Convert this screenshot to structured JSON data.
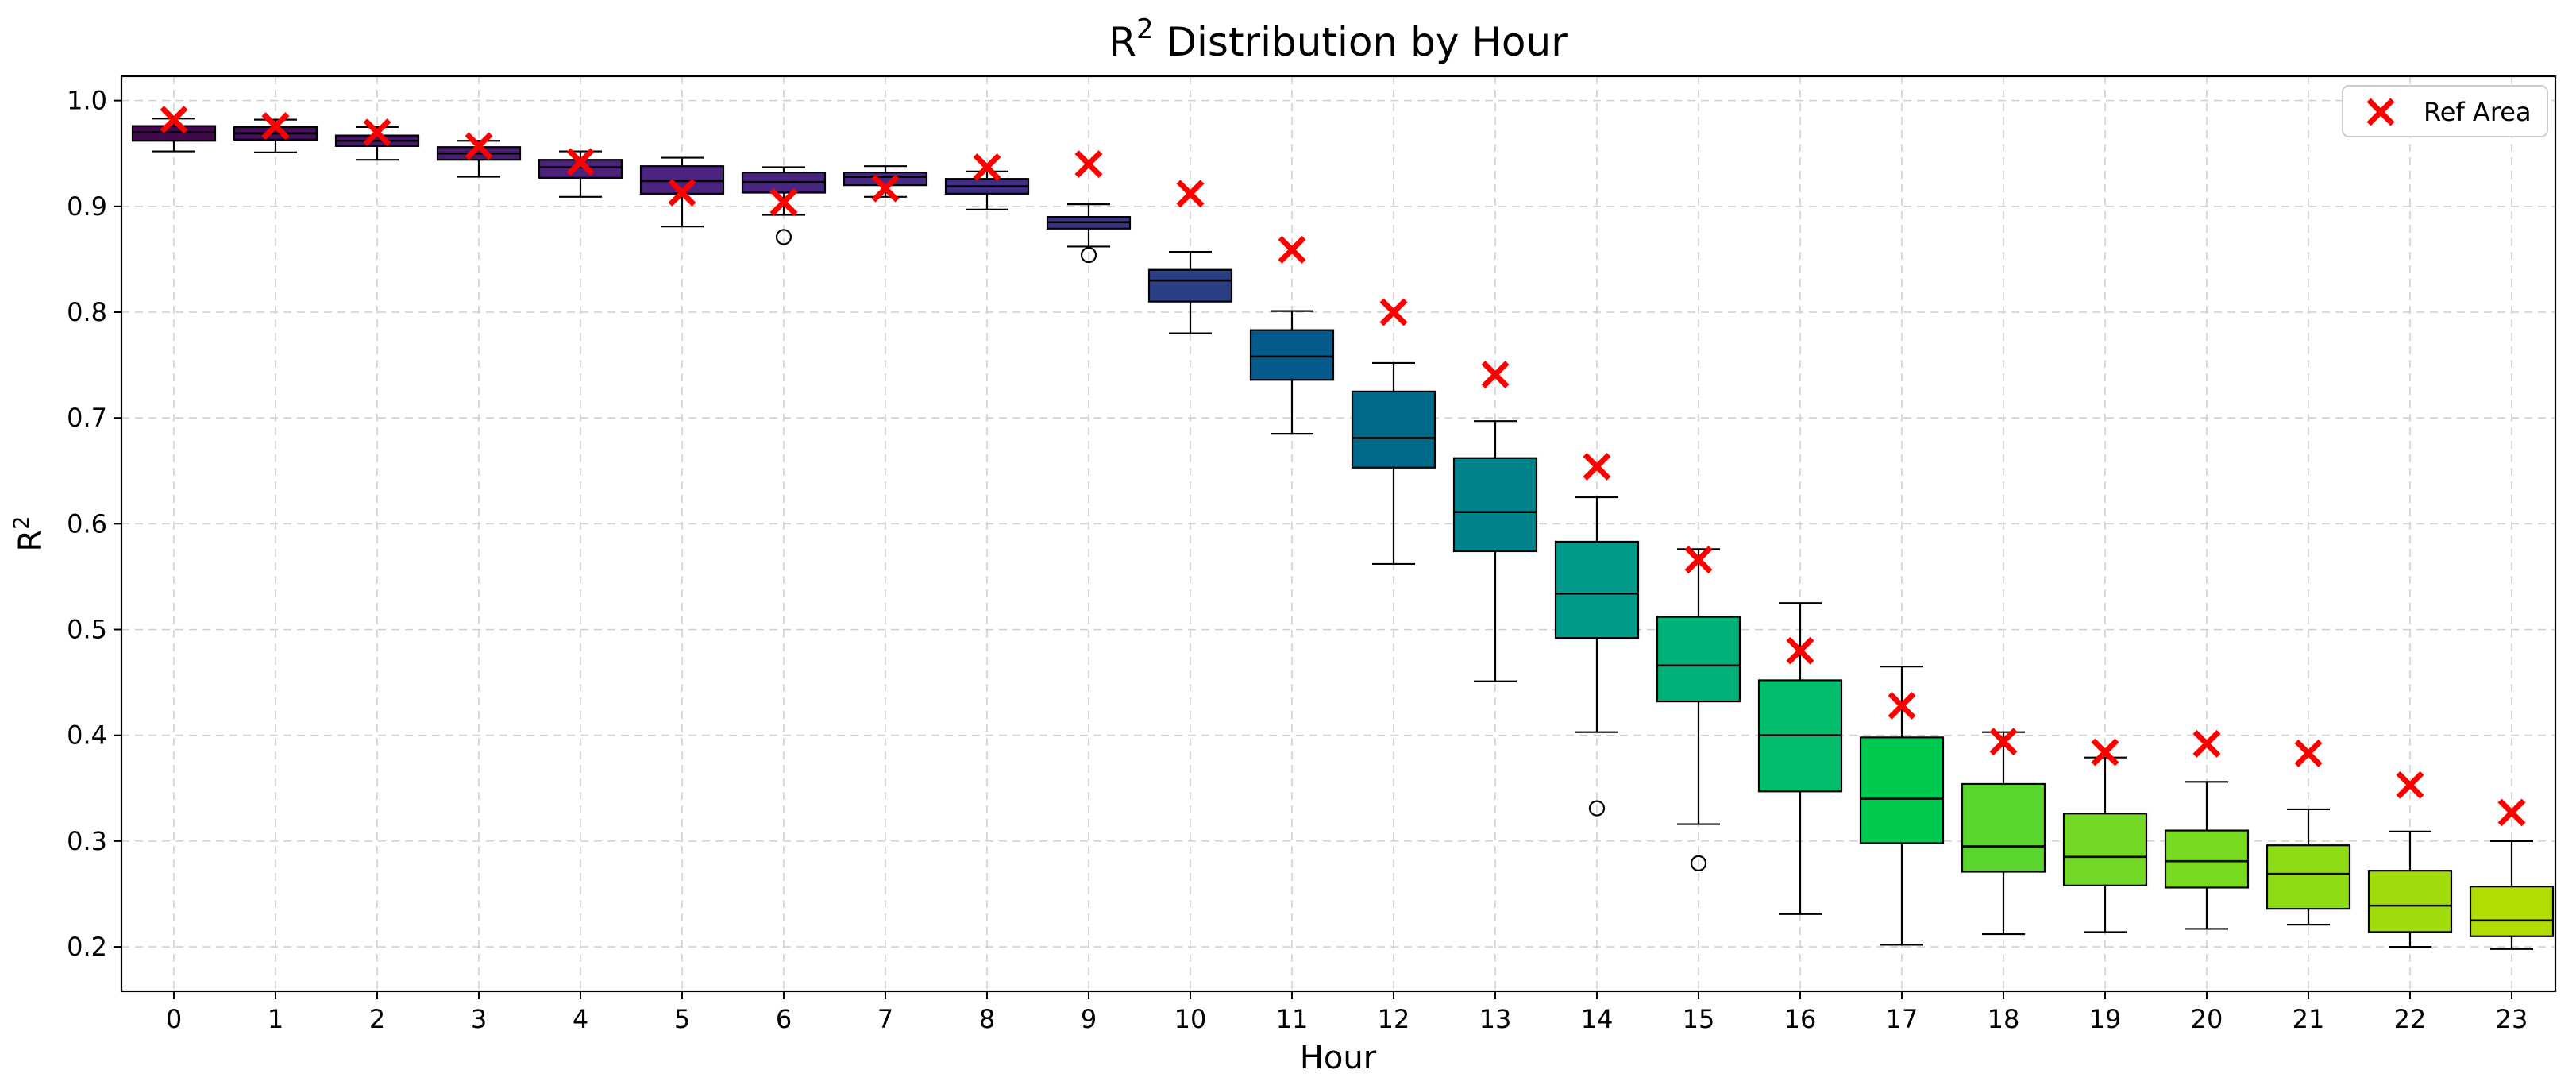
{
  "chart_data": {
    "type": "box",
    "title_base": "R",
    "title_sup": "2",
    "title_rest": " Distribution by Hour",
    "xlabel": "Hour",
    "ylabel_base": "R",
    "ylabel_sup": "2",
    "ylim": [
      0.158,
      1.023
    ],
    "yticks": [
      0.2,
      0.3,
      0.4,
      0.5,
      0.6,
      0.7,
      0.8,
      0.9,
      1.0
    ],
    "ytick_labels": [
      "0.2",
      "0.3",
      "0.4",
      "0.5",
      "0.6",
      "0.7",
      "0.8",
      "0.9",
      "1.0"
    ],
    "grid": true,
    "legend": {
      "position": "top-right",
      "label": "Ref Area",
      "marker": "x",
      "color": "#ff0000"
    },
    "categories": [
      "0",
      "1",
      "2",
      "3",
      "4",
      "5",
      "6",
      "7",
      "8",
      "9",
      "10",
      "11",
      "12",
      "13",
      "14",
      "15",
      "16",
      "17",
      "18",
      "19",
      "20",
      "21",
      "22",
      "23"
    ],
    "boxes": [
      {
        "hour": "0",
        "whislo": 0.952,
        "q1": 0.962,
        "med": 0.97,
        "q3": 0.976,
        "whishi": 0.983,
        "fliers": [],
        "color": "#44074f"
      },
      {
        "hour": "1",
        "whislo": 0.951,
        "q1": 0.963,
        "med": 0.969,
        "q3": 0.975,
        "whishi": 0.982,
        "fliers": [],
        "color": "#470d5d"
      },
      {
        "hour": "2",
        "whislo": 0.944,
        "q1": 0.957,
        "med": 0.962,
        "q3": 0.967,
        "whishi": 0.975,
        "fliers": [],
        "color": "#48166a"
      },
      {
        "hour": "3",
        "whislo": 0.928,
        "q1": 0.944,
        "med": 0.95,
        "q3": 0.956,
        "whishi": 0.962,
        "fliers": [],
        "color": "#4a1b73"
      },
      {
        "hour": "4",
        "whislo": 0.909,
        "q1": 0.927,
        "med": 0.937,
        "q3": 0.944,
        "whishi": 0.952,
        "fliers": [],
        "color": "#4b217c"
      },
      {
        "hour": "5",
        "whislo": 0.881,
        "q1": 0.912,
        "med": 0.924,
        "q3": 0.938,
        "whishi": 0.946,
        "fliers": [],
        "color": "#4c2380"
      },
      {
        "hour": "6",
        "whislo": 0.892,
        "q1": 0.913,
        "med": 0.923,
        "q3": 0.932,
        "whishi": 0.937,
        "fliers": [
          0.871
        ],
        "color": "#4a2683"
      },
      {
        "hour": "7",
        "whislo": 0.909,
        "q1": 0.92,
        "med": 0.928,
        "q3": 0.932,
        "whishi": 0.938,
        "fliers": [],
        "color": "#472a84"
      },
      {
        "hour": "8",
        "whislo": 0.897,
        "q1": 0.912,
        "med": 0.919,
        "q3": 0.926,
        "whishi": 0.933,
        "fliers": [],
        "color": "#422d84"
      },
      {
        "hour": "9",
        "whislo": 0.862,
        "q1": 0.879,
        "med": 0.885,
        "q3": 0.89,
        "whishi": 0.902,
        "fliers": [
          0.854
        ],
        "color": "#3c3487"
      },
      {
        "hour": "10",
        "whislo": 0.78,
        "q1": 0.81,
        "med": 0.83,
        "q3": 0.84,
        "whishi": 0.857,
        "fliers": [],
        "color": "#2b3f87"
      },
      {
        "hour": "11",
        "whislo": 0.685,
        "q1": 0.736,
        "med": 0.758,
        "q3": 0.783,
        "whishi": 0.801,
        "fliers": [],
        "color": "#045a8a"
      },
      {
        "hour": "12",
        "whislo": 0.562,
        "q1": 0.653,
        "med": 0.681,
        "q3": 0.725,
        "whishi": 0.752,
        "fliers": [],
        "color": "#016a88"
      },
      {
        "hour": "13",
        "whislo": 0.451,
        "q1": 0.574,
        "med": 0.611,
        "q3": 0.662,
        "whishi": 0.697,
        "fliers": [],
        "color": "#00838a"
      },
      {
        "hour": "14",
        "whislo": 0.403,
        "q1": 0.492,
        "med": 0.534,
        "q3": 0.583,
        "whishi": 0.625,
        "fliers": [
          0.331
        ],
        "color": "#009b8a"
      },
      {
        "hour": "15",
        "whislo": 0.316,
        "q1": 0.432,
        "med": 0.466,
        "q3": 0.512,
        "whishi": 0.576,
        "fliers": [
          0.279
        ],
        "color": "#00b17a"
      },
      {
        "hour": "16",
        "whislo": 0.231,
        "q1": 0.347,
        "med": 0.4,
        "q3": 0.452,
        "whishi": 0.525,
        "fliers": [],
        "color": "#01be6c"
      },
      {
        "hour": "17",
        "whislo": 0.202,
        "q1": 0.298,
        "med": 0.34,
        "q3": 0.398,
        "whishi": 0.465,
        "fliers": [],
        "color": "#00c94f"
      },
      {
        "hour": "18",
        "whislo": 0.212,
        "q1": 0.271,
        "med": 0.295,
        "q3": 0.354,
        "whishi": 0.403,
        "fliers": [],
        "color": "#5ad52d"
      },
      {
        "hour": "19",
        "whislo": 0.214,
        "q1": 0.258,
        "med": 0.285,
        "q3": 0.326,
        "whishi": 0.379,
        "fliers": [],
        "color": "#71d926"
      },
      {
        "hour": "20",
        "whislo": 0.217,
        "q1": 0.256,
        "med": 0.281,
        "q3": 0.31,
        "whishi": 0.356,
        "fliers": [],
        "color": "#78db20"
      },
      {
        "hour": "21",
        "whislo": 0.221,
        "q1": 0.236,
        "med": 0.269,
        "q3": 0.296,
        "whishi": 0.33,
        "fliers": [],
        "color": "#8ddc14"
      },
      {
        "hour": "22",
        "whislo": 0.2,
        "q1": 0.214,
        "med": 0.239,
        "q3": 0.272,
        "whishi": 0.309,
        "fliers": [],
        "color": "#a0dc0c"
      },
      {
        "hour": "23",
        "whislo": 0.198,
        "q1": 0.21,
        "med": 0.225,
        "q3": 0.257,
        "whishi": 0.3,
        "fliers": [],
        "color": "#b1dd05"
      }
    ],
    "ref_area": [
      0.982,
      0.976,
      0.97,
      0.957,
      0.942,
      0.913,
      0.904,
      0.917,
      0.937,
      0.94,
      0.912,
      0.859,
      0.8,
      0.741,
      0.654,
      0.566,
      0.48,
      0.428,
      0.394,
      0.384,
      0.392,
      0.383,
      0.353,
      0.327
    ]
  }
}
